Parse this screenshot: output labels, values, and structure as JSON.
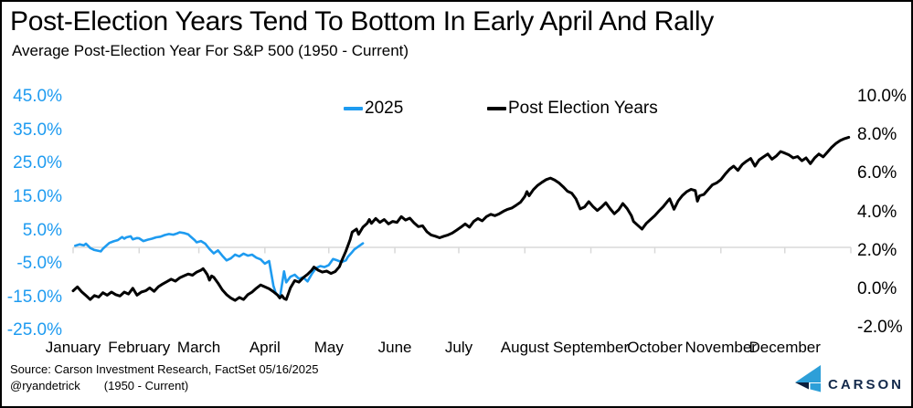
{
  "header": {
    "title": "Post-Election Years Tend To Bottom In Early April And Rally",
    "subtitle": "Average Post-Election Year For S&P 500 (1950 - Current)"
  },
  "footer": {
    "source_line": "Source: Carson Investment Research, FactSet 05/16/2025",
    "handle": "@ryandetrick",
    "range_note": "(1950 - Current)",
    "logo_text": "CARSON",
    "logo_colors": {
      "light": "#2D9FD8",
      "dark": "#0C1E3C",
      "text": "#13294B"
    }
  },
  "chart_data": {
    "type": "line",
    "title": "Average Post-Election Year For S&P 500 (1950 - Current)",
    "gridline": {
      "color": "#D9D9D9",
      "at_left_axis_value": 0
    },
    "x_axis": {
      "labels": [
        "January",
        "February",
        "March",
        "April",
        "May",
        "June",
        "July",
        "August",
        "September",
        "October",
        "November",
        "December"
      ],
      "tick_days": [
        0,
        31,
        59,
        90,
        120,
        151,
        181,
        212,
        243,
        273,
        304,
        334
      ],
      "range_days": [
        0,
        365
      ]
    },
    "y_left": {
      "color": "#1E9BF0",
      "ticks": [
        "45.0%",
        "35.0%",
        "25.0%",
        "15.0%",
        "5.0%",
        "-5.0%",
        "-15.0%",
        "-25.0%"
      ],
      "min": -25,
      "max": 45
    },
    "y_right": {
      "color": "#000000",
      "ticks": [
        "10.0%",
        "8.0%",
        "6.0%",
        "4.0%",
        "2.0%",
        "0.0%",
        "-2.0%"
      ],
      "min": -2,
      "max": 10
    },
    "series": [
      {
        "name": "2025",
        "color": "#1E9BF0",
        "axis": "left",
        "width": 2.6,
        "points": [
          [
            1,
            0.5
          ],
          [
            3,
            0.9
          ],
          [
            5,
            0.6
          ],
          [
            6,
            1.1
          ],
          [
            7,
            0.5
          ],
          [
            8,
            -0.2
          ],
          [
            10,
            -0.8
          ],
          [
            13,
            -1.2
          ],
          [
            14,
            -0.4
          ],
          [
            15,
            0.2
          ],
          [
            17,
            1.3
          ],
          [
            19,
            1.8
          ],
          [
            21,
            2.2
          ],
          [
            23,
            3.1
          ],
          [
            24,
            2.6
          ],
          [
            25,
            3.0
          ],
          [
            27,
            3.3
          ],
          [
            28,
            2.4
          ],
          [
            30,
            2.8
          ],
          [
            31,
            2.7
          ],
          [
            33,
            1.9
          ],
          [
            35,
            2.3
          ],
          [
            37,
            2.6
          ],
          [
            39,
            3.0
          ],
          [
            41,
            3.2
          ],
          [
            43,
            3.7
          ],
          [
            45,
            4.0
          ],
          [
            47,
            3.8
          ],
          [
            49,
            4.2
          ],
          [
            50,
            4.5
          ],
          [
            52,
            4.3
          ],
          [
            54,
            3.9
          ],
          [
            55,
            3.3
          ],
          [
            57,
            2.2
          ],
          [
            58,
            1.5
          ],
          [
            60,
            1.9
          ],
          [
            62,
            1.1
          ],
          [
            64,
            -0.5
          ],
          [
            66,
            -1.8
          ],
          [
            68,
            -0.9
          ],
          [
            70,
            -2.5
          ],
          [
            72,
            -3.9
          ],
          [
            74,
            -3.3
          ],
          [
            76,
            -2.2
          ],
          [
            78,
            -2.7
          ],
          [
            80,
            -1.9
          ],
          [
            82,
            -2.5
          ],
          [
            84,
            -2.2
          ],
          [
            86,
            -3.1
          ],
          [
            88,
            -3.6
          ],
          [
            90,
            -4.9
          ],
          [
            92,
            -4.1
          ],
          [
            94,
            -11.5
          ],
          [
            95,
            -13.5
          ],
          [
            97,
            -15.2
          ],
          [
            99,
            -7.2
          ],
          [
            100,
            -10.5
          ],
          [
            102,
            -8.8
          ],
          [
            104,
            -8.2
          ],
          [
            106,
            -9.4
          ],
          [
            108,
            -9.0
          ],
          [
            110,
            -10.2
          ],
          [
            112,
            -8.0
          ],
          [
            114,
            -6.2
          ],
          [
            116,
            -5.6
          ],
          [
            118,
            -5.9
          ],
          [
            120,
            -5.3
          ],
          [
            122,
            -3.5
          ],
          [
            124,
            -3.9
          ],
          [
            126,
            -4.4
          ],
          [
            128,
            -3.9
          ],
          [
            129,
            -2.8
          ],
          [
            131,
            -1.4
          ],
          [
            132,
            -0.6
          ],
          [
            134,
            0.3
          ],
          [
            136,
            1.2
          ]
        ]
      },
      {
        "name": "Post Election Years",
        "color": "#000000",
        "axis": "right",
        "width": 3,
        "points": [
          [
            0,
            -0.05
          ],
          [
            2,
            0.15
          ],
          [
            4,
            -0.1
          ],
          [
            6,
            -0.3
          ],
          [
            8,
            -0.5
          ],
          [
            10,
            -0.3
          ],
          [
            12,
            -0.38
          ],
          [
            14,
            -0.15
          ],
          [
            16,
            -0.28
          ],
          [
            18,
            -0.12
          ],
          [
            20,
            -0.25
          ],
          [
            22,
            -0.32
          ],
          [
            24,
            -0.12
          ],
          [
            26,
            -0.22
          ],
          [
            28,
            0.08
          ],
          [
            30,
            -0.28
          ],
          [
            32,
            -0.12
          ],
          [
            34,
            -0.05
          ],
          [
            36,
            0.1
          ],
          [
            38,
            -0.08
          ],
          [
            40,
            0.16
          ],
          [
            42,
            0.3
          ],
          [
            44,
            0.42
          ],
          [
            46,
            0.55
          ],
          [
            48,
            0.45
          ],
          [
            50,
            0.62
          ],
          [
            52,
            0.72
          ],
          [
            54,
            0.82
          ],
          [
            56,
            0.76
          ],
          [
            58,
            0.92
          ],
          [
            60,
            1.02
          ],
          [
            61,
            1.1
          ],
          [
            62,
            0.95
          ],
          [
            63,
            0.78
          ],
          [
            64,
            0.5
          ],
          [
            65,
            0.72
          ],
          [
            66,
            0.65
          ],
          [
            68,
            0.35
          ],
          [
            70,
            0.0
          ],
          [
            72,
            -0.25
          ],
          [
            74,
            -0.42
          ],
          [
            76,
            -0.55
          ],
          [
            78,
            -0.4
          ],
          [
            80,
            -0.5
          ],
          [
            82,
            -0.25
          ],
          [
            84,
            -0.12
          ],
          [
            86,
            0.08
          ],
          [
            88,
            0.25
          ],
          [
            90,
            0.15
          ],
          [
            92,
            0.05
          ],
          [
            94,
            -0.1
          ],
          [
            96,
            -0.28
          ],
          [
            97,
            -0.42
          ],
          [
            98,
            -0.3
          ],
          [
            99,
            -0.45
          ],
          [
            100,
            -0.5
          ],
          [
            101,
            -0.2
          ],
          [
            102,
            0.1
          ],
          [
            104,
            0.48
          ],
          [
            106,
            0.4
          ],
          [
            108,
            0.63
          ],
          [
            110,
            0.8
          ],
          [
            112,
            1.02
          ],
          [
            113,
            1.18
          ],
          [
            115,
            1.02
          ],
          [
            117,
            0.92
          ],
          [
            119,
            0.97
          ],
          [
            121,
            0.85
          ],
          [
            123,
            0.95
          ],
          [
            125,
            1.2
          ],
          [
            126,
            1.5
          ],
          [
            128,
            2.0
          ],
          [
            130,
            2.6
          ],
          [
            131,
            3.0
          ],
          [
            133,
            3.15
          ],
          [
            134,
            2.88
          ],
          [
            136,
            3.25
          ],
          [
            138,
            3.45
          ],
          [
            139,
            3.65
          ],
          [
            140,
            3.45
          ],
          [
            142,
            3.7
          ],
          [
            144,
            3.5
          ],
          [
            146,
            3.65
          ],
          [
            148,
            3.42
          ],
          [
            150,
            3.55
          ],
          [
            152,
            3.5
          ],
          [
            154,
            3.8
          ],
          [
            156,
            3.62
          ],
          [
            158,
            3.72
          ],
          [
            160,
            3.48
          ],
          [
            162,
            3.28
          ],
          [
            164,
            3.32
          ],
          [
            166,
            3.02
          ],
          [
            168,
            2.85
          ],
          [
            170,
            2.78
          ],
          [
            172,
            2.7
          ],
          [
            174,
            2.78
          ],
          [
            176,
            2.85
          ],
          [
            178,
            2.95
          ],
          [
            180,
            3.1
          ],
          [
            182,
            3.25
          ],
          [
            184,
            3.42
          ],
          [
            186,
            3.25
          ],
          [
            188,
            3.55
          ],
          [
            190,
            3.7
          ],
          [
            192,
            3.58
          ],
          [
            194,
            3.8
          ],
          [
            196,
            3.92
          ],
          [
            198,
            3.85
          ],
          [
            200,
            3.95
          ],
          [
            202,
            4.08
          ],
          [
            204,
            4.18
          ],
          [
            206,
            4.25
          ],
          [
            208,
            4.4
          ],
          [
            210,
            4.55
          ],
          [
            212,
            4.85
          ],
          [
            213,
            5.1
          ],
          [
            214,
            4.88
          ],
          [
            216,
            5.2
          ],
          [
            218,
            5.42
          ],
          [
            220,
            5.58
          ],
          [
            222,
            5.72
          ],
          [
            224,
            5.8
          ],
          [
            226,
            5.7
          ],
          [
            228,
            5.55
          ],
          [
            230,
            5.35
          ],
          [
            232,
            5.12
          ],
          [
            234,
            5.02
          ],
          [
            236,
            4.72
          ],
          [
            238,
            4.2
          ],
          [
            240,
            4.3
          ],
          [
            242,
            4.58
          ],
          [
            244,
            4.32
          ],
          [
            246,
            4.12
          ],
          [
            248,
            4.3
          ],
          [
            250,
            4.52
          ],
          [
            252,
            4.22
          ],
          [
            254,
            3.95
          ],
          [
            256,
            4.15
          ],
          [
            258,
            4.48
          ],
          [
            260,
            4.22
          ],
          [
            262,
            3.85
          ],
          [
            263,
            3.55
          ],
          [
            265,
            3.35
          ],
          [
            267,
            3.15
          ],
          [
            269,
            3.45
          ],
          [
            271,
            3.65
          ],
          [
            273,
            3.85
          ],
          [
            275,
            4.1
          ],
          [
            277,
            4.32
          ],
          [
            279,
            4.6
          ],
          [
            280,
            4.72
          ],
          [
            282,
            4.18
          ],
          [
            284,
            4.62
          ],
          [
            286,
            4.9
          ],
          [
            288,
            5.1
          ],
          [
            290,
            5.22
          ],
          [
            292,
            5.15
          ],
          [
            293,
            4.6
          ],
          [
            294,
            4.88
          ],
          [
            296,
            4.95
          ],
          [
            298,
            5.2
          ],
          [
            300,
            5.45
          ],
          [
            302,
            5.55
          ],
          [
            304,
            5.72
          ],
          [
            306,
            6.0
          ],
          [
            308,
            6.25
          ],
          [
            310,
            6.42
          ],
          [
            312,
            6.2
          ],
          [
            314,
            6.5
          ],
          [
            316,
            6.68
          ],
          [
            318,
            6.82
          ],
          [
            320,
            6.42
          ],
          [
            322,
            6.75
          ],
          [
            324,
            6.9
          ],
          [
            326,
            7.05
          ],
          [
            328,
            6.78
          ],
          [
            330,
            6.95
          ],
          [
            332,
            7.18
          ],
          [
            334,
            7.1
          ],
          [
            336,
            7.0
          ],
          [
            338,
            6.85
          ],
          [
            340,
            6.92
          ],
          [
            342,
            6.7
          ],
          [
            344,
            6.85
          ],
          [
            346,
            6.55
          ],
          [
            348,
            6.85
          ],
          [
            350,
            7.05
          ],
          [
            352,
            6.9
          ],
          [
            354,
            7.15
          ],
          [
            356,
            7.4
          ],
          [
            358,
            7.6
          ],
          [
            360,
            7.75
          ],
          [
            362,
            7.85
          ],
          [
            364,
            7.92
          ]
        ]
      }
    ]
  }
}
